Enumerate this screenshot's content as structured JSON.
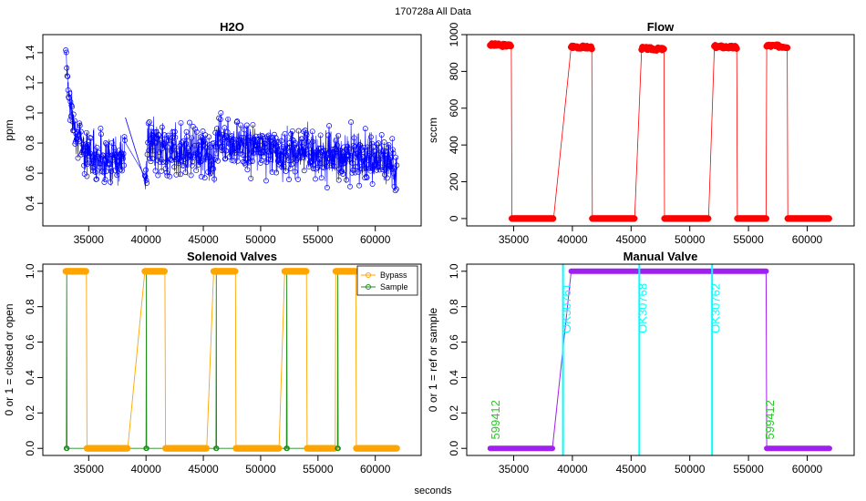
{
  "figure": {
    "suptitle": "170728a   All Data",
    "xlabel": "seconds"
  },
  "chart_data": [
    {
      "type": "scatter",
      "title": "H2O",
      "xlabel": "",
      "ylabel": "ppm",
      "xlim": [
        31000,
        64000
      ],
      "ylim": [
        0.25,
        1.52
      ],
      "xticks": [
        35000,
        40000,
        45000,
        50000,
        55000,
        60000
      ],
      "yticks": [
        0.4,
        0.6,
        0.8,
        1.0,
        1.2,
        1.4
      ],
      "tick_labels_x": [
        "35000",
        "40000",
        "45000",
        "50000",
        "55000",
        "60000"
      ],
      "tick_labels_y": [
        "0.4",
        "0.6",
        "0.8",
        "1.0",
        "1.2",
        "1.4"
      ],
      "color": "#0000ff",
      "series": [
        {
          "name": "H2O",
          "points": [
            [
              33000,
              1.46
            ],
            [
              33100,
              1.3
            ],
            [
              33200,
              1.2
            ],
            [
              33350,
              1.08
            ],
            [
              33500,
              1.0
            ],
            [
              33700,
              0.93
            ],
            [
              34000,
              0.86
            ],
            [
              34300,
              0.81
            ],
            [
              34700,
              0.76
            ],
            [
              35200,
              0.73
            ],
            [
              35800,
              0.71
            ],
            [
              36400,
              0.7
            ],
            [
              37000,
              0.69
            ],
            [
              37600,
              0.69
            ],
            [
              38100,
              0.68
            ],
            [
              38200,
              0.97
            ],
            [
              39900,
              0.55
            ],
            [
              40200,
              0.8
            ],
            [
              41000,
              0.78
            ],
            [
              42000,
              0.76
            ],
            [
              43000,
              0.75
            ],
            [
              44000,
              0.76
            ],
            [
              45000,
              0.75
            ],
            [
              45400,
              0.72
            ],
            [
              45900,
              0.62
            ],
            [
              46200,
              0.85
            ],
            [
              47000,
              0.83
            ],
            [
              47800,
              0.8
            ],
            [
              48600,
              0.78
            ],
            [
              49500,
              0.77
            ],
            [
              50500,
              0.76
            ],
            [
              51300,
              0.75
            ],
            [
              51900,
              0.7
            ],
            [
              52100,
              0.76
            ],
            [
              53000,
              0.74
            ],
            [
              54000,
              0.73
            ],
            [
              55000,
              0.73
            ],
            [
              56000,
              0.72
            ],
            [
              57000,
              0.72
            ],
            [
              58000,
              0.71
            ],
            [
              59000,
              0.7
            ],
            [
              60000,
              0.69
            ],
            [
              61000,
              0.68
            ],
            [
              61900,
              0.67
            ]
          ]
        }
      ],
      "noise_band": 0.16
    },
    {
      "type": "scatter",
      "title": "Flow",
      "xlabel": "",
      "ylabel": "sccm",
      "xlim": [
        31000,
        64000
      ],
      "ylim": [
        -40,
        1000
      ],
      "xticks": [
        35000,
        40000,
        45000,
        50000,
        55000,
        60000
      ],
      "yticks": [
        0,
        200,
        400,
        600,
        800,
        1000
      ],
      "tick_labels_x": [
        "35000",
        "40000",
        "45000",
        "50000",
        "55000",
        "60000"
      ],
      "tick_labels_y": [
        "0",
        "200",
        "400",
        "600",
        "800",
        "1000"
      ],
      "color": "#ff0000",
      "series": [
        {
          "name": "Flow",
          "points": [
            [
              33000,
              945
            ],
            [
              34800,
              940
            ],
            [
              34850,
              0
            ],
            [
              38400,
              0
            ],
            [
              39900,
              935
            ],
            [
              41650,
              930
            ],
            [
              41700,
              0
            ],
            [
              45300,
              0
            ],
            [
              45900,
              925
            ],
            [
              47800,
              920
            ],
            [
              47850,
              0
            ],
            [
              51600,
              0
            ],
            [
              52100,
              935
            ],
            [
              54000,
              930
            ],
            [
              54050,
              0
            ],
            [
              56500,
              0
            ],
            [
              56550,
              940
            ],
            [
              58300,
              935
            ],
            [
              58350,
              0
            ],
            [
              61900,
              0
            ]
          ]
        }
      ]
    },
    {
      "type": "line",
      "title": "Solenoid Valves",
      "xlabel": "",
      "ylabel": "0 or 1 = closed or open",
      "xlim": [
        31000,
        64000
      ],
      "ylim": [
        -0.04,
        1.04
      ],
      "xticks": [
        35000,
        40000,
        45000,
        50000,
        55000,
        60000
      ],
      "yticks": [
        0.0,
        0.2,
        0.4,
        0.6,
        0.8,
        1.0
      ],
      "tick_labels_x": [
        "35000",
        "40000",
        "45000",
        "50000",
        "55000",
        "60000"
      ],
      "tick_labels_y": [
        "0.0",
        "0.2",
        "0.4",
        "0.6",
        "0.8",
        "1.0"
      ],
      "legend": {
        "position": "top-right",
        "entries": [
          "Bypass",
          "Sample"
        ]
      },
      "series": [
        {
          "name": "Bypass",
          "color": "#ffa500",
          "points": [
            [
              33000,
              1
            ],
            [
              34800,
              1
            ],
            [
              34850,
              0
            ],
            [
              38400,
              0
            ],
            [
              39900,
              1
            ],
            [
              41650,
              1
            ],
            [
              41700,
              0
            ],
            [
              45300,
              0
            ],
            [
              45900,
              1
            ],
            [
              47800,
              1
            ],
            [
              47850,
              0
            ],
            [
              51600,
              0
            ],
            [
              52100,
              1
            ],
            [
              54000,
              1
            ],
            [
              54050,
              0
            ],
            [
              56500,
              0
            ],
            [
              56550,
              1
            ],
            [
              58300,
              1
            ],
            [
              58350,
              0
            ],
            [
              61900,
              0
            ]
          ]
        },
        {
          "name": "Sample",
          "color": "#228b22",
          "points": [
            [
              33050,
              0
            ],
            [
              33080,
              1
            ],
            [
              33110,
              0
            ],
            [
              40000,
              0
            ],
            [
              40030,
              1
            ],
            [
              40060,
              0
            ],
            [
              46100,
              0
            ],
            [
              46130,
              1
            ],
            [
              46160,
              0
            ],
            [
              52250,
              0
            ],
            [
              52280,
              1
            ],
            [
              52310,
              0
            ],
            [
              56700,
              0
            ],
            [
              56730,
              1
            ],
            [
              56760,
              0
            ]
          ]
        }
      ]
    },
    {
      "type": "line",
      "title": "Manual Valve",
      "xlabel": "",
      "ylabel": "0 or 1 = ref or sample",
      "xlim": [
        31000,
        64000
      ],
      "ylim": [
        -0.04,
        1.04
      ],
      "xticks": [
        35000,
        40000,
        45000,
        50000,
        55000,
        60000
      ],
      "yticks": [
        0.0,
        0.2,
        0.4,
        0.6,
        0.8,
        1.0
      ],
      "tick_labels_x": [
        "35000",
        "40000",
        "45000",
        "50000",
        "55000",
        "60000"
      ],
      "tick_labels_y": [
        "0.0",
        "0.2",
        "0.4",
        "0.6",
        "0.8",
        "1.0"
      ],
      "series": [
        {
          "name": "Manual Valve",
          "color": "#a020f0",
          "points": [
            [
              33000,
              0
            ],
            [
              38300,
              0
            ],
            [
              39900,
              1
            ],
            [
              56500,
              1
            ],
            [
              56550,
              0
            ],
            [
              61900,
              0
            ]
          ]
        }
      ],
      "vlines": [
        {
          "x": 39200,
          "color": "#00ffff"
        },
        {
          "x": 45700,
          "color": "#00ffff"
        },
        {
          "x": 51900,
          "color": "#00ffff"
        }
      ],
      "annotations": [
        {
          "x": 33800,
          "y": 0.05,
          "text": "599412",
          "color": "#22cc22"
        },
        {
          "x": 39850,
          "y": 0.65,
          "text": "OK30761",
          "color": "#00ffff"
        },
        {
          "x": 46350,
          "y": 0.65,
          "text": "OK30768",
          "color": "#00ffff"
        },
        {
          "x": 52550,
          "y": 0.65,
          "text": "OK30762",
          "color": "#00ffff"
        },
        {
          "x": 57150,
          "y": 0.05,
          "text": "599412",
          "color": "#22cc22"
        }
      ]
    }
  ]
}
